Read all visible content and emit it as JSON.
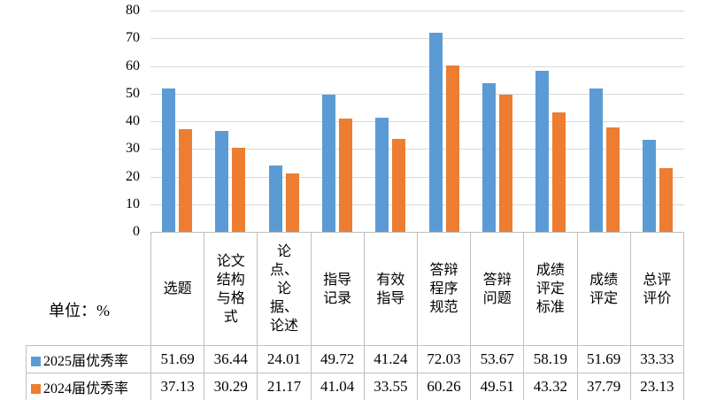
{
  "chart_data": {
    "type": "bar",
    "title": "",
    "unit_label": "单位：%",
    "categories": [
      "选题",
      "论文\n结构\n与格\n式",
      "论\n点、\n论\n据、\n论述",
      "指导\n记录",
      "有效\n指导",
      "答辩\n程序\n规范",
      "答辩\n问题",
      "成绩\n评定\n标准",
      "成绩\n评定",
      "总评\n评价"
    ],
    "series": [
      {
        "name": "2025届优秀率",
        "color": "#5B9BD5",
        "values": [
          51.69,
          36.44,
          24.01,
          49.72,
          41.24,
          72.03,
          53.67,
          58.19,
          51.69,
          33.33
        ]
      },
      {
        "name": "2024届优秀率",
        "color": "#ED7D31",
        "values": [
          37.13,
          30.29,
          21.17,
          41.04,
          33.55,
          60.26,
          49.51,
          43.32,
          37.79,
          23.13
        ]
      }
    ],
    "ylim": [
      0,
      80
    ],
    "yticks": [
      0,
      10,
      20,
      30,
      40,
      50,
      60,
      70,
      80
    ],
    "value_decimals": 2,
    "grid": true,
    "gridline_color": "#D9D9D9",
    "table_border_color": "#BFBFBF",
    "legend_position": "table-left"
  }
}
